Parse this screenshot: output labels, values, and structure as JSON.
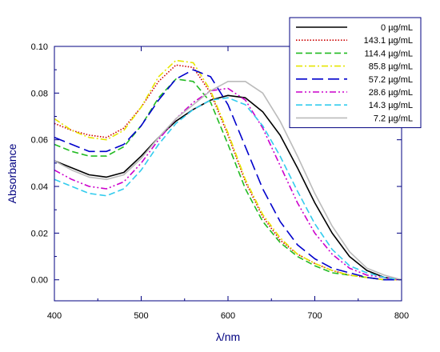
{
  "chart_data": {
    "type": "line",
    "xlabel": "λ/nm",
    "ylabel": "Absorbance",
    "xlim": [
      400,
      800
    ],
    "ylim": [
      -0.009,
      0.1
    ],
    "xticks": [
      400,
      500,
      600,
      700,
      800
    ],
    "xtick_labels": [
      "400",
      "500",
      "600",
      "700",
      "800"
    ],
    "yticks": [
      0.0,
      0.02,
      0.04,
      0.06,
      0.08,
      0.1
    ],
    "ytick_labels": [
      "0.00",
      "0.02",
      "0.04",
      "0.06",
      "0.08",
      "0.10"
    ],
    "grid": false,
    "legend_position": "top-right",
    "axis_color": "#000080",
    "series": [
      {
        "name": "0 µg/mL",
        "color": "#000000",
        "dash": "solid",
        "x": [
          400,
          420,
          440,
          460,
          480,
          500,
          520,
          540,
          560,
          580,
          600,
          620,
          640,
          660,
          680,
          700,
          720,
          740,
          760,
          780,
          800
        ],
        "y": [
          0.051,
          0.048,
          0.045,
          0.044,
          0.046,
          0.053,
          0.061,
          0.068,
          0.073,
          0.077,
          0.079,
          0.078,
          0.072,
          0.062,
          0.048,
          0.033,
          0.02,
          0.01,
          0.004,
          0.001,
          0.0
        ]
      },
      {
        "name": "143.1 µg/mL",
        "color": "#cc0000",
        "dash": "dotted",
        "x": [
          400,
          420,
          440,
          460,
          480,
          500,
          520,
          540,
          560,
          580,
          600,
          620,
          640,
          660,
          680,
          700,
          720,
          740,
          760,
          780,
          800
        ],
        "y": [
          0.067,
          0.064,
          0.062,
          0.061,
          0.065,
          0.074,
          0.085,
          0.092,
          0.091,
          0.08,
          0.062,
          0.042,
          0.027,
          0.017,
          0.011,
          0.007,
          0.004,
          0.002,
          0.001,
          0.0,
          0.0
        ]
      },
      {
        "name": "114.4 µg/mL",
        "color": "#22bb22",
        "dash": "dashed",
        "x": [
          400,
          420,
          440,
          460,
          480,
          500,
          520,
          540,
          560,
          580,
          600,
          620,
          640,
          660,
          680,
          700,
          720,
          740,
          760,
          780,
          800
        ],
        "y": [
          0.058,
          0.055,
          0.053,
          0.053,
          0.057,
          0.066,
          0.078,
          0.086,
          0.085,
          0.076,
          0.058,
          0.039,
          0.025,
          0.016,
          0.01,
          0.006,
          0.003,
          0.002,
          0.001,
          0.0,
          0.0
        ]
      },
      {
        "name": "85.8 µg/mL",
        "color": "#e6e600",
        "dash": "dashdot",
        "x": [
          400,
          420,
          440,
          460,
          480,
          500,
          520,
          540,
          560,
          580,
          600,
          620,
          640,
          660,
          680,
          700,
          720,
          740,
          760,
          780,
          800
        ],
        "y": [
          0.069,
          0.064,
          0.061,
          0.06,
          0.064,
          0.074,
          0.087,
          0.094,
          0.093,
          0.081,
          0.063,
          0.043,
          0.028,
          0.018,
          0.011,
          0.007,
          0.004,
          0.002,
          0.001,
          0.0,
          0.0
        ]
      },
      {
        "name": "57.2 µg/mL",
        "color": "#0000cc",
        "dash": "longdash",
        "x": [
          400,
          420,
          440,
          460,
          480,
          500,
          520,
          540,
          560,
          580,
          600,
          620,
          640,
          660,
          680,
          700,
          720,
          740,
          760,
          780,
          800
        ],
        "y": [
          0.061,
          0.058,
          0.055,
          0.055,
          0.058,
          0.066,
          0.077,
          0.086,
          0.09,
          0.087,
          0.075,
          0.057,
          0.039,
          0.025,
          0.015,
          0.009,
          0.005,
          0.003,
          0.001,
          0.0,
          0.0
        ]
      },
      {
        "name": "28.6 µg/mL",
        "color": "#cc00cc",
        "dash": "dashdotdot",
        "x": [
          400,
          420,
          440,
          460,
          480,
          500,
          520,
          540,
          560,
          580,
          600,
          620,
          640,
          660,
          680,
          700,
          720,
          740,
          760,
          780,
          800
        ],
        "y": [
          0.047,
          0.043,
          0.04,
          0.039,
          0.042,
          0.05,
          0.06,
          0.069,
          0.076,
          0.081,
          0.082,
          0.077,
          0.065,
          0.049,
          0.033,
          0.02,
          0.011,
          0.005,
          0.002,
          0.001,
          0.0
        ]
      },
      {
        "name": "14.3 µg/mL",
        "color": "#33ccee",
        "dash": "dashed",
        "x": [
          400,
          420,
          440,
          460,
          480,
          500,
          520,
          540,
          560,
          580,
          600,
          620,
          640,
          660,
          680,
          700,
          720,
          740,
          760,
          780,
          800
        ],
        "y": [
          0.043,
          0.04,
          0.037,
          0.036,
          0.039,
          0.047,
          0.058,
          0.067,
          0.073,
          0.077,
          0.078,
          0.075,
          0.066,
          0.053,
          0.038,
          0.024,
          0.013,
          0.006,
          0.003,
          0.001,
          0.0
        ]
      },
      {
        "name": "7.2 µg/mL",
        "color": "#bbbbbb",
        "dash": "solid",
        "x": [
          400,
          420,
          440,
          460,
          480,
          500,
          520,
          540,
          560,
          580,
          600,
          620,
          640,
          660,
          680,
          700,
          720,
          740,
          760,
          780,
          800
        ],
        "y": [
          0.051,
          0.047,
          0.044,
          0.043,
          0.045,
          0.052,
          0.061,
          0.069,
          0.075,
          0.081,
          0.085,
          0.085,
          0.08,
          0.068,
          0.053,
          0.037,
          0.023,
          0.012,
          0.005,
          0.002,
          0.0
        ]
      }
    ]
  }
}
